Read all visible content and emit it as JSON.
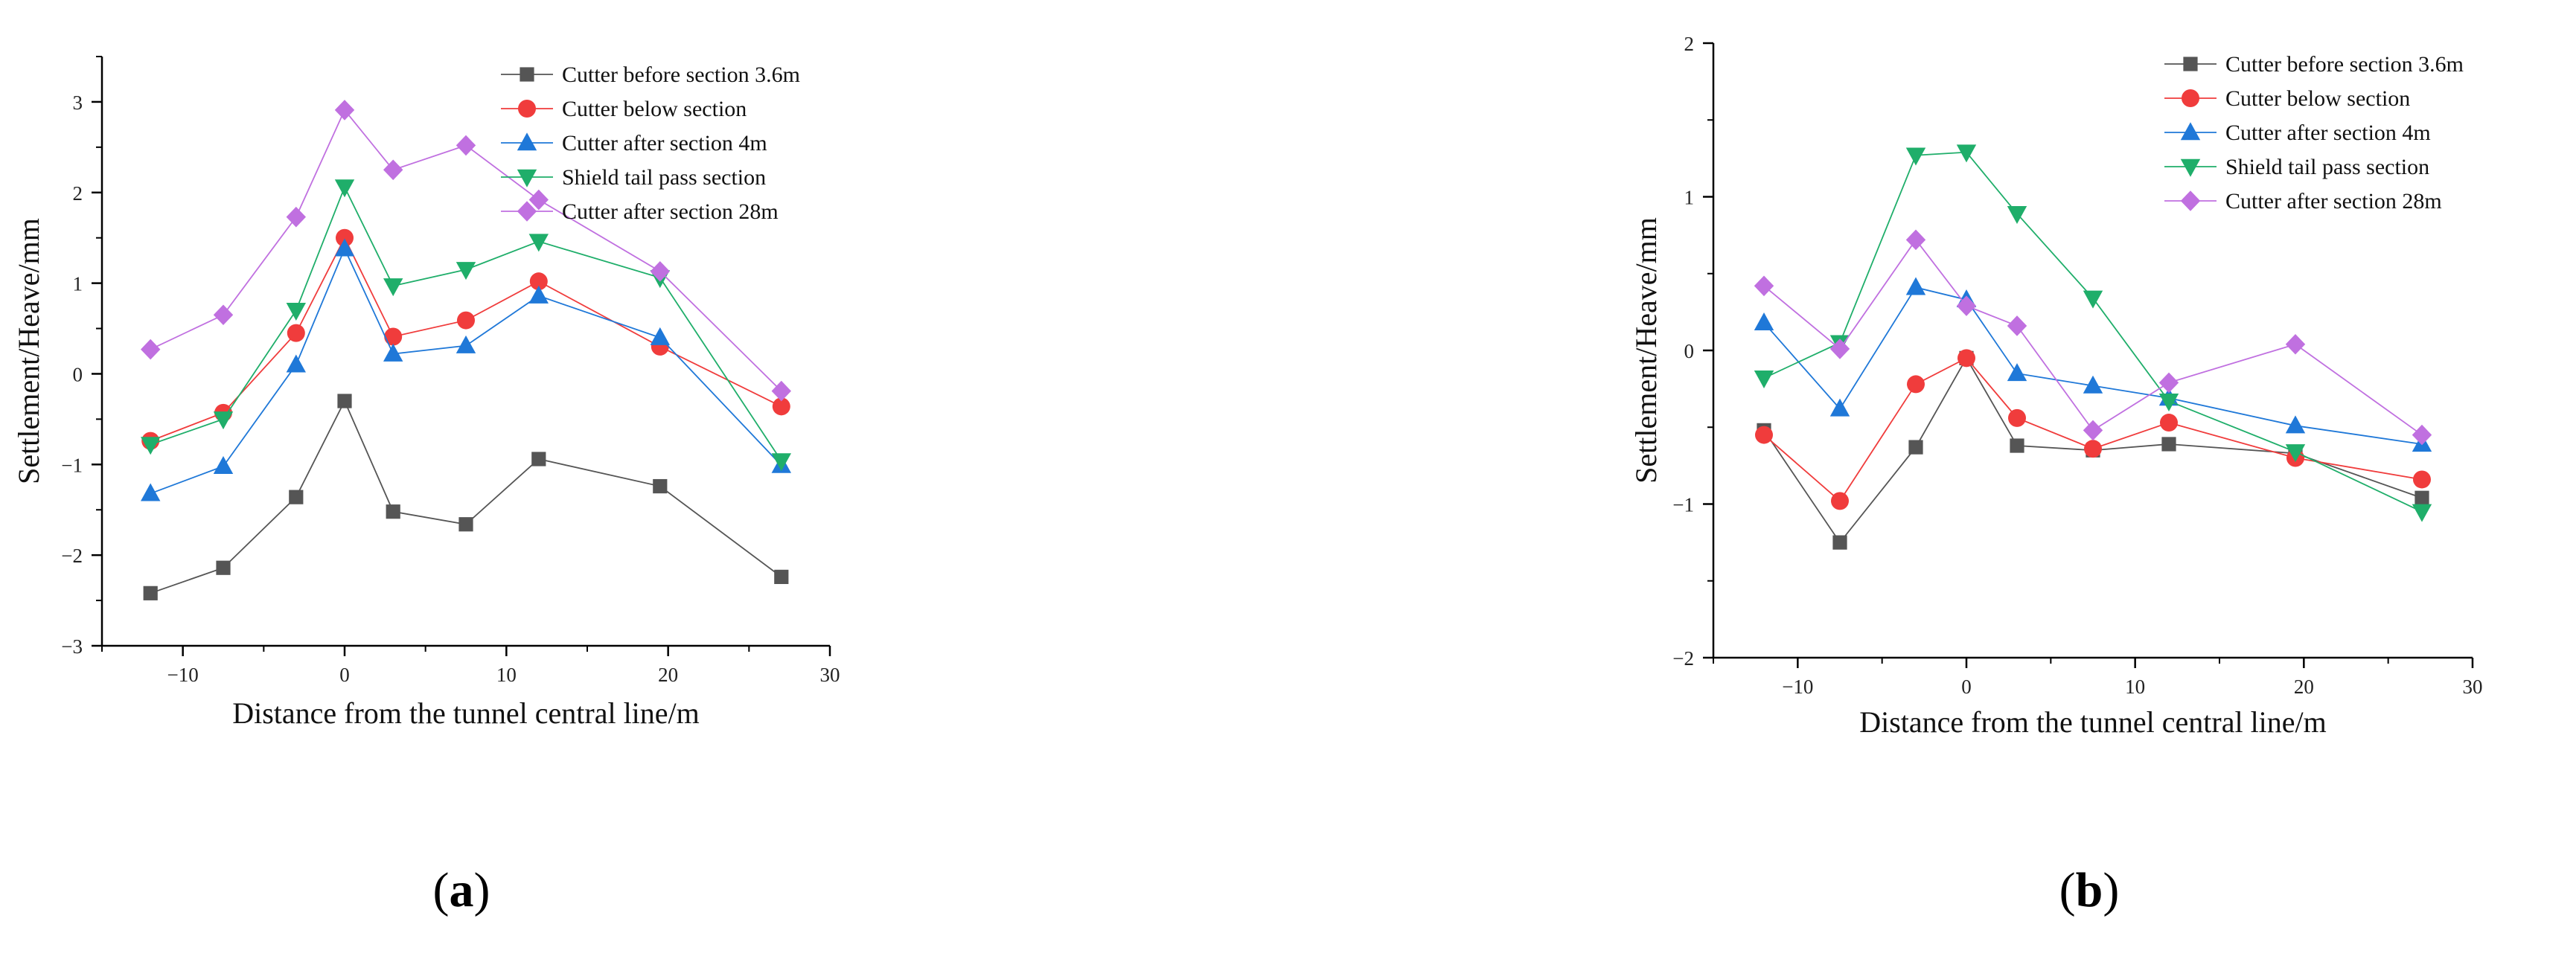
{
  "chart_data": [
    {
      "panel_label": "a",
      "type": "line",
      "xlabel": "Distance from the tunnel central line/m",
      "ylabel": "Settlement/Heave/mm",
      "xlim": [
        -15,
        30
      ],
      "ylim": [
        -3,
        3.5
      ],
      "xticks": [
        -10,
        0,
        10,
        20,
        30
      ],
      "yticks": [
        -3,
        -2,
        -1,
        0,
        1,
        2,
        3
      ],
      "grid": false,
      "legend_position": "top-right",
      "x": [
        -12,
        -7.5,
        -3,
        0,
        3,
        7.5,
        12,
        19.5,
        27
      ],
      "series": [
        {
          "name": "Cutter before section 3.6m",
          "marker": "square",
          "color": "#555555",
          "values": [
            -2.42,
            -2.14,
            -1.36,
            -0.3,
            -1.52,
            -1.66,
            -0.94,
            -1.24,
            -2.24
          ]
        },
        {
          "name": "Cutter below section",
          "marker": "circle",
          "color": "#f03c3c",
          "values": [
            -0.74,
            -0.43,
            0.45,
            1.5,
            0.41,
            0.59,
            1.02,
            0.3,
            -0.36
          ]
        },
        {
          "name": "Cutter after section 4m",
          "marker": "triangle-up",
          "color": "#1f78d8",
          "values": [
            -1.32,
            -1.02,
            0.1,
            1.38,
            0.22,
            0.31,
            0.86,
            0.4,
            -1.01
          ]
        },
        {
          "name": "Shield tail pass section",
          "marker": "triangle-down",
          "color": "#1fae6a",
          "values": [
            -0.78,
            -0.5,
            0.7,
            2.06,
            0.97,
            1.15,
            1.46,
            1.06,
            -0.96
          ]
        },
        {
          "name": "Cutter after section 28m",
          "marker": "diamond",
          "color": "#c070e0",
          "values": [
            0.27,
            0.65,
            1.73,
            2.91,
            2.25,
            2.52,
            1.92,
            1.13,
            -0.19
          ]
        }
      ]
    },
    {
      "panel_label": "b",
      "type": "line",
      "xlabel": "Distance from the tunnel central line/m",
      "ylabel": "Settlement/Heave/mm",
      "xlim": [
        -15,
        30
      ],
      "ylim": [
        -2,
        2
      ],
      "xticks": [
        -10,
        0,
        10,
        20,
        30
      ],
      "yticks": [
        -2,
        -1,
        0,
        1,
        2
      ],
      "grid": false,
      "legend_position": "top-right",
      "x": [
        -12,
        -7.5,
        -3,
        0,
        3,
        7.5,
        12,
        19.5,
        27
      ],
      "series": [
        {
          "name": "Cutter before section 3.6m",
          "marker": "square",
          "color": "#555555",
          "values": [
            -0.52,
            -1.25,
            -0.63,
            -0.05,
            -0.62,
            -0.65,
            -0.61,
            -0.67,
            -0.96
          ]
        },
        {
          "name": "Cutter below section",
          "marker": "circle",
          "color": "#f03c3c",
          "values": [
            -0.55,
            -0.98,
            -0.22,
            -0.05,
            -0.44,
            -0.64,
            -0.47,
            -0.7,
            -0.84
          ]
        },
        {
          "name": "Cutter after section 4m",
          "marker": "triangle-up",
          "color": "#1f78d8",
          "values": [
            0.18,
            -0.38,
            0.41,
            0.33,
            -0.15,
            -0.23,
            -0.31,
            -0.49,
            -0.61
          ]
        },
        {
          "name": "Shield tail pass section",
          "marker": "triangle-down",
          "color": "#1fae6a",
          "values": [
            -0.18,
            0.05,
            1.27,
            1.29,
            0.89,
            0.34,
            -0.33,
            -0.66,
            -1.05
          ]
        },
        {
          "name": "Cutter after section 28m",
          "marker": "diamond",
          "color": "#c070e0",
          "values": [
            0.42,
            0.01,
            0.72,
            0.29,
            0.16,
            -0.52,
            -0.21,
            0.04,
            -0.55
          ]
        }
      ]
    }
  ]
}
